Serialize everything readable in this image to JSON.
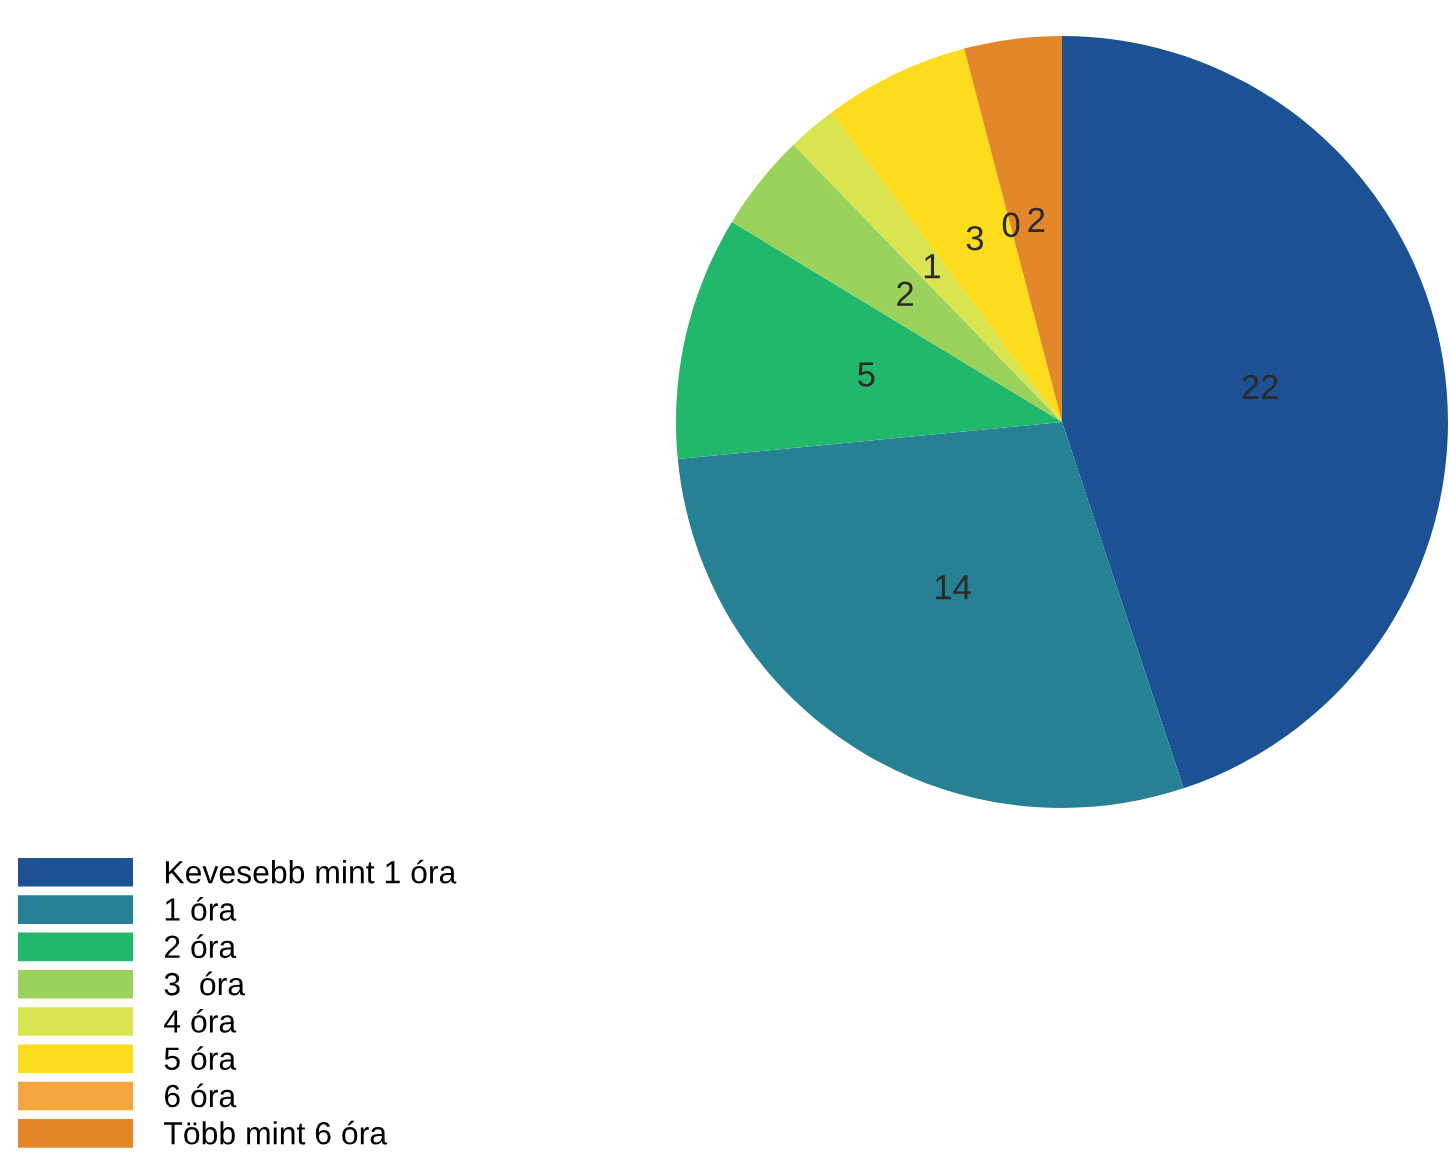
{
  "chart_data": {
    "type": "pie",
    "categories": [
      "Kevesebb mint 1 óra",
      "1 óra",
      "2 óra",
      "3  óra",
      "4 óra",
      "5 óra",
      "6 óra",
      "Több mint 6 óra"
    ],
    "values": [
      22,
      14,
      5,
      2,
      1,
      3,
      0,
      2
    ],
    "value_labels": [
      "22",
      "14",
      "5",
      "2",
      "1",
      "3",
      "0",
      "2"
    ],
    "colors": [
      "#1c5294",
      "#258193",
      "#21b86c",
      "#9bd25c",
      "#d8e551",
      "#fcdc1c",
      "#f4a43c",
      "#e3872a"
    ],
    "legend": "bottom left"
  }
}
